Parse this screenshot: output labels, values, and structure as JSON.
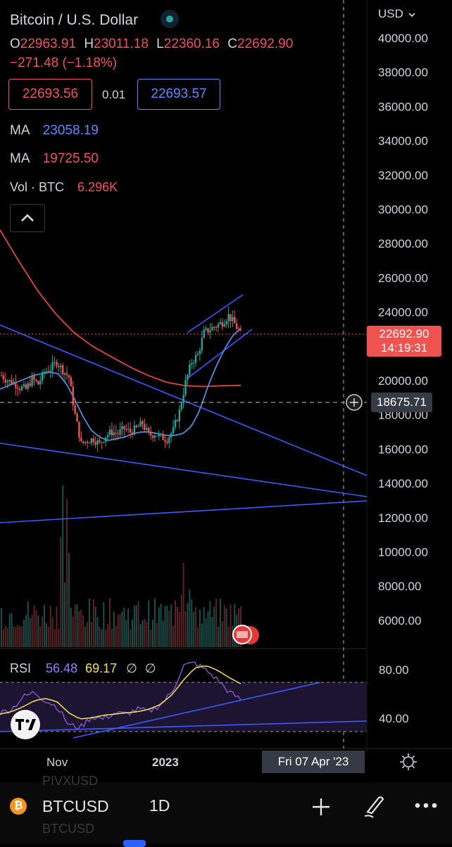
{
  "header": {
    "title": "Bitcoin / U.S. Dollar",
    "o_label": "O",
    "o_value": "22963.91",
    "h_label": "H",
    "h_value": "23011.18",
    "l_label": "L",
    "l_value": "22360.16",
    "c_label": "C",
    "c_value": "22692.90",
    "change": "−271.48 (−1.18%)",
    "bid": "22693.56",
    "spread": "0.01",
    "ask": "22693.57",
    "ma1_label": "MA",
    "ma1_value": "23058.19",
    "ma2_label": "MA",
    "ma2_value": "19725.50",
    "vol_label": "Vol · BTC",
    "vol_value": "6.296K"
  },
  "currency": "USD",
  "price_tag": {
    "price": "22692.90",
    "countdown": "14:19:31"
  },
  "crosshair": {
    "price": "18675.71",
    "date": "Fri 07 Apr '23"
  },
  "rsi": {
    "label": "RSI",
    "value1": "56.48",
    "value2": "69.17",
    "flag1": "∅",
    "flag2": "∅",
    "levels": [
      "80.00",
      "40.00"
    ]
  },
  "bottom_bar": {
    "symbol": "BTCUSD",
    "interval": "1D",
    "ghost_symbol_1": "PIVXUSD",
    "ghost_symbol_2": "BTCUSD"
  },
  "colors": {
    "up": "#26a69a",
    "down": "#ef5350",
    "ma_fast": "#4a90e2",
    "ma_slow": "#e0473f",
    "trend": "#3d5afe",
    "rsi": "#7e57c2",
    "rsi_ma": "#f6e05e"
  },
  "chart_data": {
    "type": "line",
    "series_type": "candlestick",
    "y_ticks": [
      40000,
      38000,
      36000,
      34000,
      32000,
      30000,
      28000,
      26000,
      24000,
      20000,
      18000,
      16000,
      14000,
      12000,
      10000,
      8000,
      6000
    ],
    "ylim": [
      4800,
      40500
    ],
    "x_ticks": [
      "Nov",
      "2023"
    ],
    "close_path": [
      20300,
      20000,
      19900,
      19600,
      19500,
      20100,
      19800,
      20500,
      20700,
      21100,
      20600,
      20200,
      18000,
      16300,
      16500,
      16600,
      16300,
      16800,
      17000,
      16900,
      17200,
      17000,
      17200,
      17500,
      16800,
      16900,
      16700,
      16600,
      17100,
      18200,
      19900,
      21100,
      21500,
      22800,
      23000,
      23200,
      23400,
      23800,
      23300,
      22700
    ],
    "ma_fast_path": [
      19500,
      19700,
      19900,
      20100,
      20300,
      20400,
      20500,
      20400,
      19800,
      18900,
      17900,
      17100,
      16700,
      16500,
      16600,
      16700,
      16900,
      17000,
      17000,
      16900,
      16800,
      16800,
      16900,
      17300,
      18200,
      19600,
      20800,
      21800,
      22600,
      23058
    ],
    "ma_slow_path": [
      28800,
      27000,
      25300,
      23900,
      22800,
      22000,
      21400,
      20800,
      20300,
      19900,
      19700,
      19650,
      19700,
      19725
    ],
    "rsi_path": [
      45,
      48,
      58,
      62,
      55,
      50,
      35,
      33,
      42,
      40,
      45,
      44,
      48,
      46,
      52,
      62,
      84,
      86,
      80,
      72,
      62,
      56
    ],
    "rsi_ma_path": [
      44,
      46,
      50,
      55,
      57,
      54,
      45,
      40,
      41,
      43,
      44,
      45,
      46,
      48,
      52,
      60,
      72,
      82,
      84,
      80,
      74,
      69
    ]
  }
}
